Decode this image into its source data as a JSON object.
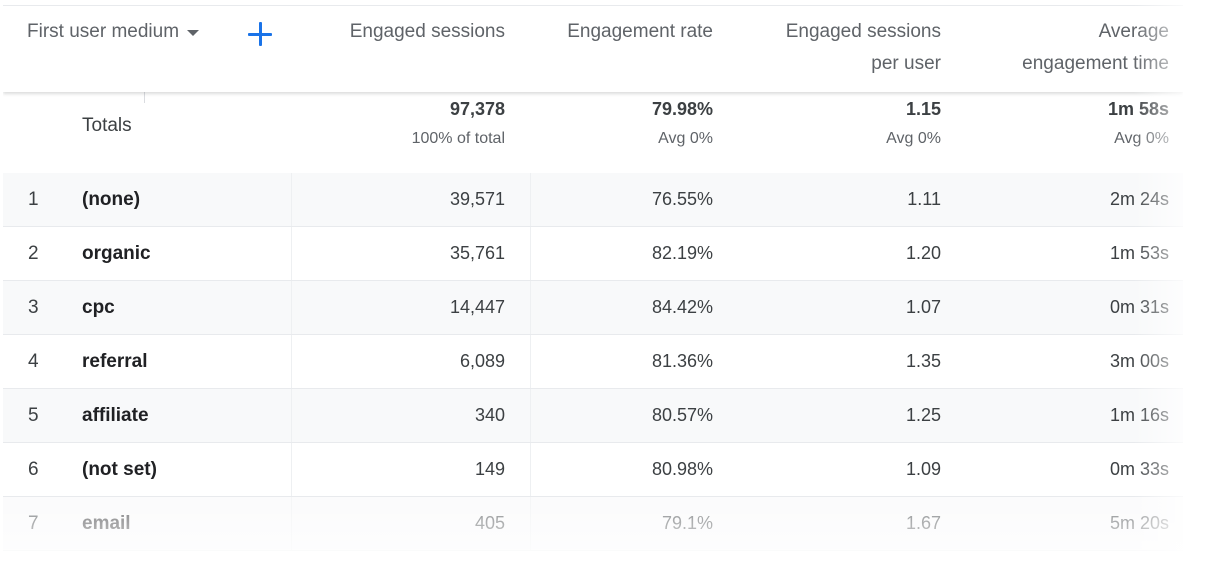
{
  "header": {
    "dimension_label": "First user medium",
    "columns": [
      {
        "line1": "Engaged sessions",
        "line2": ""
      },
      {
        "line1": "Engagement rate",
        "line2": ""
      },
      {
        "line1": "Engaged sessions",
        "line2": "per user"
      },
      {
        "line1": "Average",
        "line2": "engagement time"
      }
    ]
  },
  "totals": {
    "label": "Totals",
    "values": [
      {
        "main": "97,378",
        "sub": "100% of total"
      },
      {
        "main": "79.98%",
        "sub": "Avg 0%"
      },
      {
        "main": "1.15",
        "sub": "Avg 0%"
      },
      {
        "main": "1m 58s",
        "sub": "Avg 0%"
      }
    ]
  },
  "rows": [
    {
      "num": "1",
      "medium": "(none)",
      "engaged_sessions": "39,571",
      "engagement_rate": "76.55%",
      "sessions_per_user": "1.11",
      "avg_time": "2m 24s"
    },
    {
      "num": "2",
      "medium": "organic",
      "engaged_sessions": "35,761",
      "engagement_rate": "82.19%",
      "sessions_per_user": "1.20",
      "avg_time": "1m 53s"
    },
    {
      "num": "3",
      "medium": "cpc",
      "engaged_sessions": "14,447",
      "engagement_rate": "84.42%",
      "sessions_per_user": "1.07",
      "avg_time": "0m 31s"
    },
    {
      "num": "4",
      "medium": "referral",
      "engaged_sessions": "6,089",
      "engagement_rate": "81.36%",
      "sessions_per_user": "1.35",
      "avg_time": "3m 00s"
    },
    {
      "num": "5",
      "medium": "affiliate",
      "engaged_sessions": "340",
      "engagement_rate": "80.57%",
      "sessions_per_user": "1.25",
      "avg_time": "1m 16s"
    },
    {
      "num": "6",
      "medium": "(not set)",
      "engaged_sessions": "149",
      "engagement_rate": "80.98%",
      "sessions_per_user": "1.09",
      "avg_time": "0m 33s"
    },
    {
      "num": "7",
      "medium": "email",
      "engaged_sessions": "405",
      "engagement_rate": "79.1%",
      "sessions_per_user": "1.67",
      "avg_time": "5m 20s"
    }
  ],
  "icons": {
    "add_dimension": "plus-icon",
    "dropdown": "caret-down-icon"
  },
  "colors": {
    "accent": "#1a73e8",
    "header_text": "#5f6368",
    "body_text": "#3c4043"
  }
}
